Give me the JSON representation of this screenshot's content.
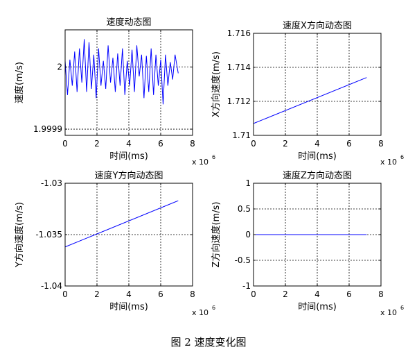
{
  "figure": {
    "caption": "图 2  速度变化图"
  },
  "chart_data": [
    {
      "type": "line",
      "title": "速度动态图",
      "xlabel": "时间(ms)",
      "ylabel": "速度(m/s)",
      "x_exponent": "x 10",
      "x_exponent_power": "6",
      "xlim": [
        0,
        8
      ],
      "ylim": [
        1.99989,
        2.00006
      ],
      "xticks": [
        0,
        2,
        4,
        6,
        8
      ],
      "xtick_labels": [
        "0",
        "2",
        "4",
        "6",
        "8"
      ],
      "yticks": [
        1.9999,
        2
      ],
      "ytick_labels": [
        "1.9999",
        "2"
      ],
      "grid": true,
      "line_color": "#0000ff",
      "series": [
        {
          "x": [
            0,
            0.15,
            0.3,
            0.45,
            0.6,
            0.75,
            0.9,
            1.05,
            1.2,
            1.35,
            1.5,
            1.65,
            1.8,
            1.95,
            2.1,
            2.25,
            2.4,
            2.55,
            2.7,
            2.85,
            3.0,
            3.15,
            3.3,
            3.45,
            3.6,
            3.75,
            3.9,
            4.05,
            4.2,
            4.35,
            4.5,
            4.65,
            4.8,
            4.95,
            5.1,
            5.25,
            5.4,
            5.55,
            5.7,
            5.85,
            6.0,
            6.15,
            6.3,
            6.45,
            6.6,
            6.75,
            6.9,
            7.1
          ],
          "values": [
            2.00001,
            1.999955,
            2.000012,
            1.99997,
            2.000025,
            1.99996,
            2.00003,
            1.999975,
            2.000045,
            1.99996,
            2.00004,
            1.999965,
            2.00002,
            1.99995,
            2.00003,
            1.99997,
            2.00001,
            1.999965,
            2.000035,
            1.999975,
            2.000015,
            1.99996,
            2.000022,
            1.99997,
            2.00003,
            1.999955,
            2.00001,
            1.99997,
            2.000028,
            1.99996,
            2.000035,
            1.999985,
            2.00002,
            1.99995,
            2.000018,
            1.99996,
            2.00003,
            1.999955,
            2.00002,
            1.99997,
            2.000012,
            1.99994,
            2.00002,
            1.99997,
            2.000008,
            1.99998,
            2.00002,
            1.99999
          ]
        }
      ]
    },
    {
      "type": "line",
      "title": "速度X方向动态图",
      "xlabel": "时间(ms)",
      "ylabel": "X方向速度(m/s)",
      "x_exponent": "x 10",
      "x_exponent_power": "6",
      "xlim": [
        0,
        8
      ],
      "ylim": [
        1.71,
        1.716
      ],
      "xticks": [
        0,
        2,
        4,
        6,
        8
      ],
      "xtick_labels": [
        "0",
        "2",
        "4",
        "6",
        "8"
      ],
      "yticks": [
        1.71,
        1.712,
        1.714,
        1.716
      ],
      "ytick_labels": [
        "1.71",
        "1.712",
        "1.714",
        "1.716"
      ],
      "grid": true,
      "line_color": "#0000ff",
      "series": [
        {
          "x": [
            0,
            7.1
          ],
          "values": [
            1.7107,
            1.7134
          ]
        }
      ]
    },
    {
      "type": "line",
      "title": "速度Y方向动态图",
      "xlabel": "时间(ms)",
      "ylabel": "Y方向速度(m/s)",
      "x_exponent": "x 10",
      "x_exponent_power": "6",
      "xlim": [
        0,
        8
      ],
      "ylim": [
        -1.04,
        -1.03
      ],
      "xticks": [
        0,
        2,
        4,
        6,
        8
      ],
      "xtick_labels": [
        "0",
        "2",
        "4",
        "6",
        "8"
      ],
      "yticks": [
        -1.04,
        -1.035,
        -1.03
      ],
      "ytick_labels": [
        "-1.04",
        "-1.035",
        "-1.03"
      ],
      "grid": true,
      "line_color": "#0000ff",
      "series": [
        {
          "x": [
            0,
            7.1
          ],
          "values": [
            -1.0362,
            -1.0317
          ]
        }
      ]
    },
    {
      "type": "line",
      "title": "速度Z方向动态图",
      "xlabel": "时间(ms)",
      "ylabel": "Z方向速度(m/s)",
      "x_exponent": "x 10",
      "x_exponent_power": "6",
      "xlim": [
        0,
        8
      ],
      "ylim": [
        -1,
        1
      ],
      "xticks": [
        0,
        2,
        4,
        6,
        8
      ],
      "xtick_labels": [
        "0",
        "2",
        "4",
        "6",
        "8"
      ],
      "yticks": [
        -1,
        -0.5,
        0,
        0.5,
        1
      ],
      "ytick_labels": [
        "-1",
        "-0.5",
        "0",
        "0.5",
        "1"
      ],
      "grid": true,
      "line_color": "#0000ff",
      "series": [
        {
          "x": [
            0,
            7.1
          ],
          "values": [
            0,
            0
          ]
        }
      ]
    }
  ]
}
